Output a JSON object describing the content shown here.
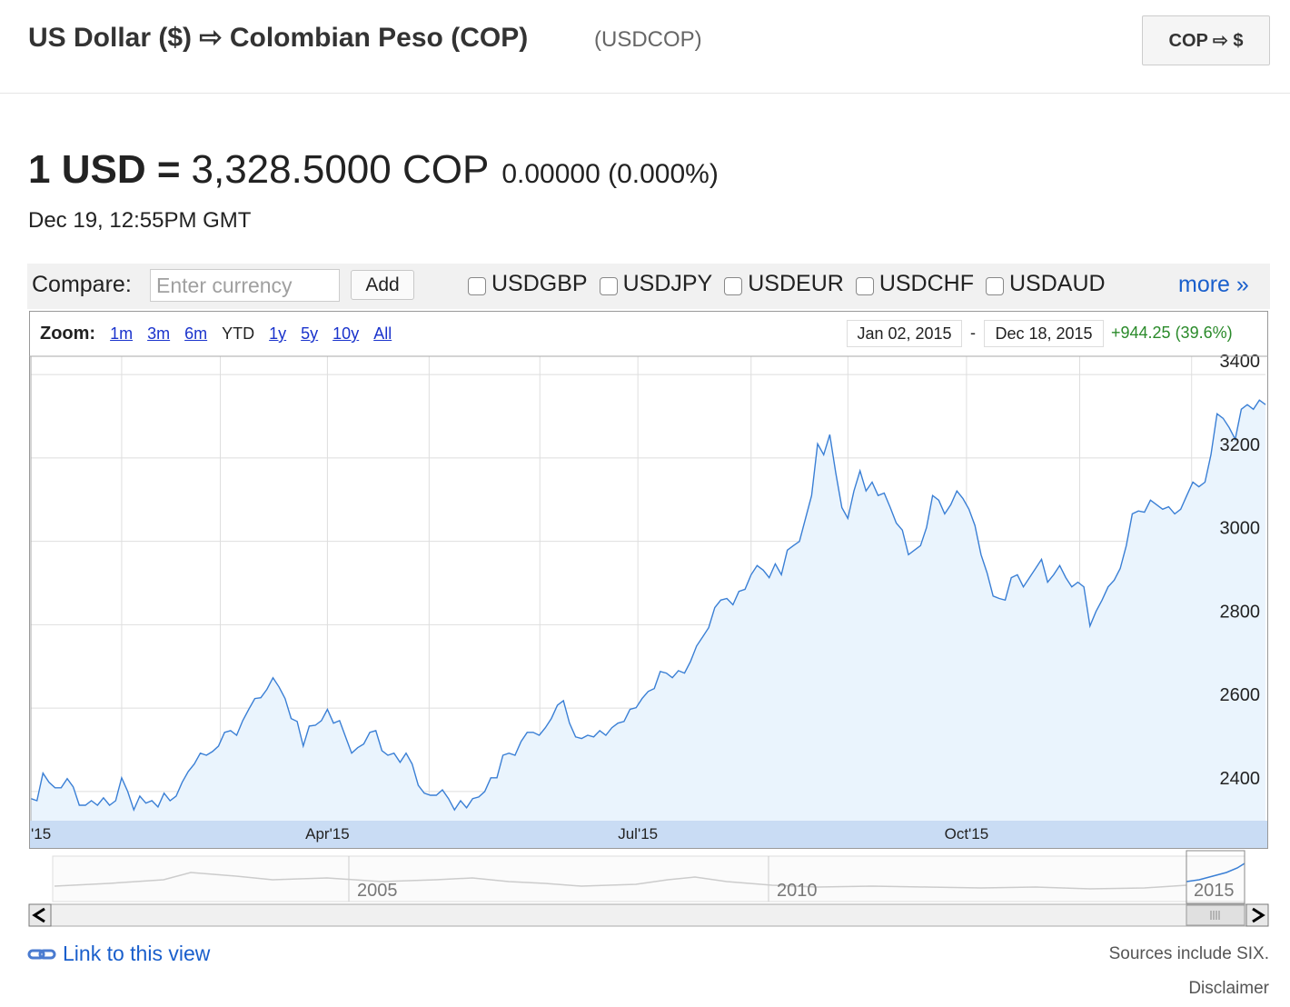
{
  "header": {
    "title": "US Dollar ($) ⇨ Colombian Peso (COP)",
    "symbol": "(USDCOP)",
    "swap_button": "COP ⇨ $"
  },
  "quote": {
    "base": "1 USD =",
    "rate": "3,328.5000 COP",
    "change": "0.00000 (0.000%)",
    "time": "Dec 19, 12:55PM GMT"
  },
  "compare": {
    "label": "Compare:",
    "placeholder": "Enter currency",
    "add": "Add",
    "options": [
      "USDGBP",
      "USDJPY",
      "USDEUR",
      "USDCHF",
      "USDAUD"
    ],
    "more": "more »"
  },
  "zoom": {
    "label": "Zoom:",
    "options": [
      "1m",
      "3m",
      "6m",
      "YTD",
      "1y",
      "5y",
      "10y",
      "All"
    ],
    "selected": 3
  },
  "range": {
    "start": "Jan 02, 2015",
    "separator": "-",
    "end": "Dec 18, 2015",
    "change": "+944.25 (39.6%)"
  },
  "chart_data": {
    "type": "area",
    "color": "#3a7fd5",
    "fill": "#eaf4fd",
    "values": [
      2383,
      2378,
      2444,
      2422,
      2409,
      2409,
      2431,
      2411,
      2367,
      2367,
      2378,
      2367,
      2385,
      2367,
      2378,
      2433,
      2400,
      2356,
      2389,
      2372,
      2378,
      2363,
      2396,
      2378,
      2389,
      2422,
      2448,
      2466,
      2492,
      2487,
      2496,
      2509,
      2542,
      2546,
      2535,
      2570,
      2597,
      2623,
      2625,
      2645,
      2673,
      2651,
      2623,
      2575,
      2568,
      2509,
      2557,
      2559,
      2570,
      2597,
      2564,
      2570,
      2531,
      2492,
      2505,
      2514,
      2542,
      2546,
      2498,
      2487,
      2492,
      2470,
      2492,
      2466,
      2415,
      2396,
      2391,
      2391,
      2404,
      2383,
      2356,
      2378,
      2361,
      2383,
      2387,
      2400,
      2433,
      2433,
      2487,
      2492,
      2487,
      2520,
      2542,
      2542,
      2535,
      2553,
      2575,
      2607,
      2618,
      2564,
      2531,
      2527,
      2535,
      2531,
      2546,
      2535,
      2553,
      2564,
      2568,
      2597,
      2601,
      2623,
      2640,
      2647,
      2688,
      2684,
      2673,
      2690,
      2684,
      2712,
      2749,
      2771,
      2793,
      2841,
      2859,
      2863,
      2848,
      2880,
      2885,
      2920,
      2942,
      2931,
      2913,
      2946,
      2920,
      2979,
      2990,
      3000,
      3055,
      3110,
      3234,
      3208,
      3256,
      3164,
      3081,
      3055,
      3121,
      3169,
      3121,
      3142,
      3110,
      3116,
      3081,
      3044,
      3027,
      2968,
      2979,
      2990,
      3033,
      3110,
      3099,
      3066,
      3088,
      3121,
      3103,
      3077,
      3038,
      2968,
      2924,
      2869,
      2863,
      2859,
      2913,
      2920,
      2891,
      2913,
      2935,
      2957,
      2902,
      2920,
      2942,
      2913,
      2891,
      2902,
      2891,
      2797,
      2832,
      2859,
      2891,
      2907,
      2935,
      2990,
      3066,
      3073,
      3070,
      3099,
      3088,
      3077,
      3083,
      3066,
      3077,
      3110,
      3142,
      3131,
      3142,
      3208,
      3306,
      3295,
      3273,
      3245,
      3317,
      3328,
      3317,
      3339,
      3328
    ],
    "xlim": [
      0,
      204
    ],
    "xticks": [
      {
        "value": 0,
        "label": "'15"
      },
      {
        "value": 49,
        "label": "Apr'15"
      },
      {
        "value": 100.3,
        "label": "Jul'15"
      },
      {
        "value": 154.6,
        "label": "Oct'15"
      }
    ],
    "xgrid": [
      15,
      31.3,
      65.8,
      84.1,
      119,
      135,
      173.3,
      191.8
    ],
    "ylim": [
      2330,
      3444
    ],
    "yticks": [
      2400,
      2600,
      2800,
      3000,
      3200,
      3400
    ],
    "grid": true
  },
  "navigator": {
    "labels": [
      "2005",
      "2010",
      "2015"
    ]
  },
  "footer": {
    "link": "Link to this view",
    "sources": "Sources include SIX.",
    "disclaimer": "Disclaimer"
  }
}
